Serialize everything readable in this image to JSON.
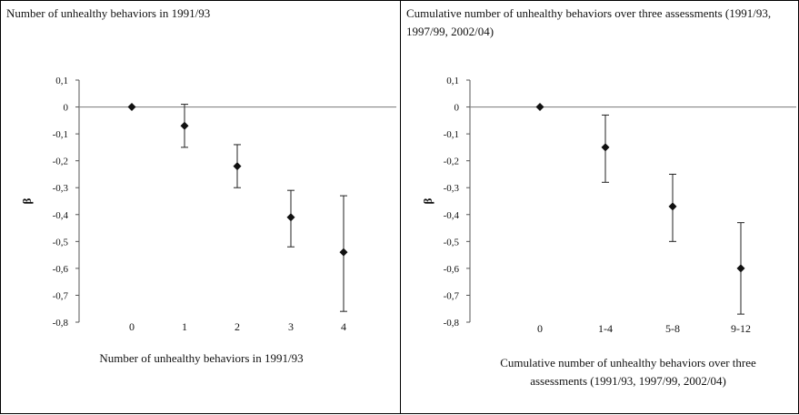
{
  "chart_data": [
    {
      "type": "scatter",
      "title": "Number of unhealthy behaviors in 1991/93",
      "xlabel": "Number of unhealthy behaviors in 1991/93",
      "ylabel": "β",
      "ylim": [
        -0.8,
        0.1
      ],
      "y_ticks": [
        "0,1",
        "0",
        "-0,1",
        "-0,2",
        "-0,3",
        "-0,4",
        "-0,5",
        "-0,6",
        "-0,7",
        "-0,8"
      ],
      "y_tick_values": [
        0.1,
        0,
        -0.1,
        -0.2,
        -0.3,
        -0.4,
        -0.5,
        -0.6,
        -0.7,
        -0.8
      ],
      "categories": [
        "0",
        "1",
        "2",
        "3",
        "4"
      ],
      "series": [
        {
          "values": [
            0,
            -0.07,
            -0.22,
            -0.41,
            -0.54
          ],
          "ci_low": [
            0,
            -0.15,
            -0.3,
            -0.52,
            -0.76
          ],
          "ci_high": [
            0,
            0.01,
            -0.14,
            -0.31,
            -0.33
          ]
        }
      ],
      "grid": false,
      "reference_line": 0,
      "marker": "diamond"
    },
    {
      "type": "scatter",
      "title": "Cumulative number of unhealthy behaviors over three assessments (1991/93, 1997/99, 2002/04)",
      "xlabel": "Cumulative number of unhealthy behaviors over three assessments (1991/93, 1997/99, 2002/04)",
      "ylabel": "β",
      "ylim": [
        -0.8,
        0.1
      ],
      "y_ticks": [
        "0,1",
        "0",
        "-0,1",
        "-0,2",
        "-0,3",
        "-0,4",
        "-0,5",
        "-0,6",
        "-0,7",
        "-0,8"
      ],
      "y_tick_values": [
        0.1,
        0,
        -0.1,
        -0.2,
        -0.3,
        -0.4,
        -0.5,
        -0.6,
        -0.7,
        -0.8
      ],
      "categories": [
        "0",
        "1-4",
        "5-8",
        "9-12"
      ],
      "series": [
        {
          "values": [
            0,
            -0.15,
            -0.37,
            -0.6
          ],
          "ci_low": [
            0,
            -0.28,
            -0.5,
            -0.77
          ],
          "ci_high": [
            0,
            -0.03,
            -0.25,
            -0.43
          ]
        }
      ],
      "grid": false,
      "reference_line": 0,
      "marker": "diamond"
    }
  ]
}
